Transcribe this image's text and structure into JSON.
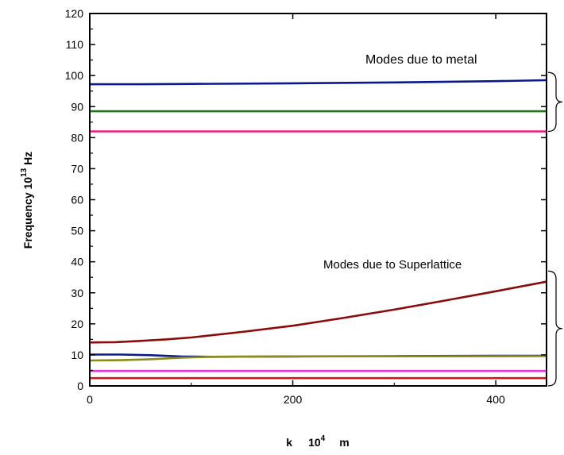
{
  "chart_data": {
    "type": "line",
    "xlabel_parts": {
      "base": "k",
      "base2": "10",
      "sup": "4",
      "unit": "m"
    },
    "ylabel_parts": {
      "base": "Frequency 10",
      "sup": "13",
      "unit": " Hz"
    },
    "xlim": [
      0,
      450
    ],
    "ylim": [
      0,
      120
    ],
    "x_ticks": [
      0,
      200,
      400
    ],
    "y_ticks": [
      0,
      10,
      20,
      30,
      40,
      50,
      60,
      70,
      80,
      90,
      100,
      110,
      120
    ],
    "grid": false,
    "annotations": [
      {
        "text": "Modes due to metal",
        "bracket_range": [
          82,
          101
        ]
      },
      {
        "text": "Modes due to Superlattice",
        "bracket_range": [
          0,
          37
        ]
      }
    ],
    "series": [
      {
        "color": "#0a1a8c",
        "x": [
          0,
          50,
          100,
          200,
          300,
          400,
          450
        ],
        "y": [
          97.2,
          97.2,
          97.3,
          97.5,
          97.8,
          98.2,
          98.5
        ]
      },
      {
        "color": "#1a7a1a",
        "x": [
          0,
          450
        ],
        "y": [
          88.5,
          88.5
        ]
      },
      {
        "color": "#ee1a7a",
        "x": [
          0,
          450
        ],
        "y": [
          82.0,
          82.0
        ]
      },
      {
        "color": "#8b0a0a",
        "x": [
          0,
          25,
          50,
          75,
          100,
          150,
          200,
          250,
          300,
          350,
          400,
          450
        ],
        "y": [
          14.0,
          14.1,
          14.5,
          15.0,
          15.6,
          17.4,
          19.4,
          21.9,
          24.6,
          27.5,
          30.5,
          33.6
        ]
      },
      {
        "color": "#0a1a8c",
        "x": [
          0,
          30,
          60,
          90,
          120,
          200,
          300,
          400,
          450
        ],
        "y": [
          10.1,
          10.1,
          9.9,
          9.5,
          9.4,
          9.5,
          9.6,
          9.7,
          9.7
        ]
      },
      {
        "color": "#8c8c1a",
        "x": [
          0,
          30,
          60,
          90,
          120,
          200,
          450
        ],
        "y": [
          8.2,
          8.3,
          8.6,
          9.1,
          9.4,
          9.5,
          9.6
        ]
      },
      {
        "color": "#e633e6",
        "x": [
          0,
          450
        ],
        "y": [
          4.8,
          4.8
        ]
      },
      {
        "color": "#cc1a1a",
        "x": [
          0,
          450
        ],
        "y": [
          2.5,
          2.5
        ]
      }
    ]
  }
}
